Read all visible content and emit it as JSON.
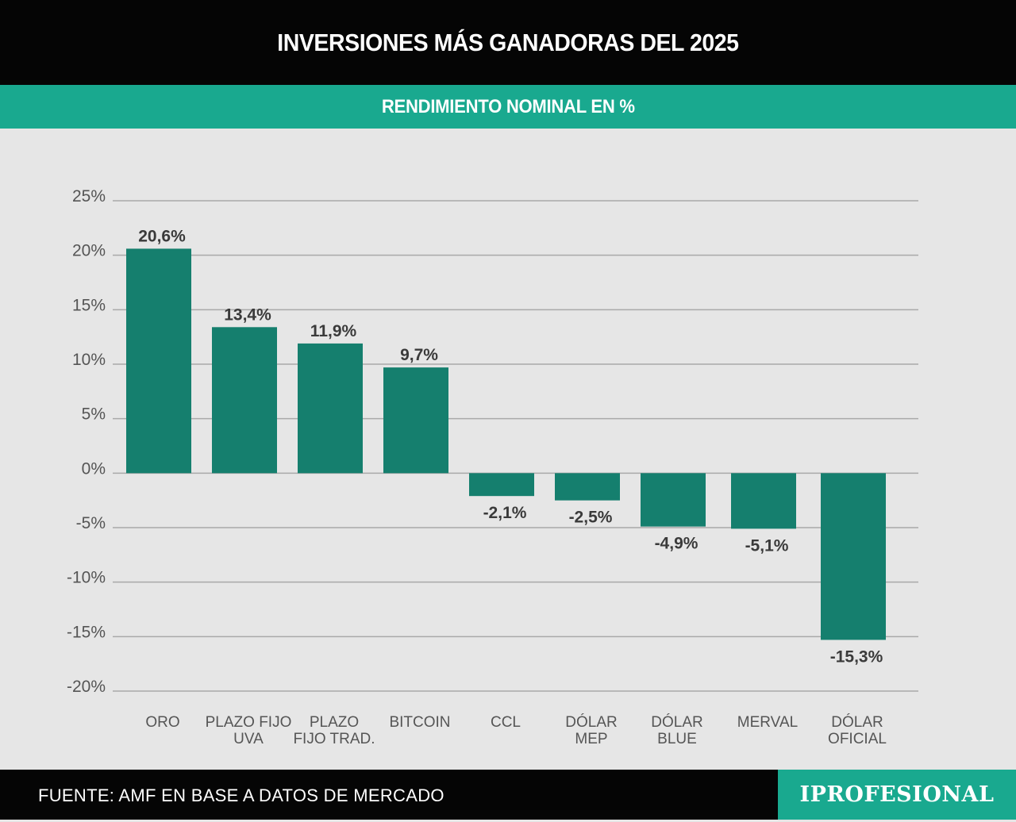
{
  "header": {
    "title": "INVERSIONES MÁS GANADORAS DEL 2025",
    "subtitle": "RENDIMIENTO NOMINAL EN %"
  },
  "footer": {
    "source": "FUENTE: AMF EN BASE A DATOS DE MERCADO",
    "brand": "IPROFESIONAL"
  },
  "colors": {
    "bar": "#157f6e",
    "accent": "#19a98f",
    "grid": "#a9a9a9",
    "background": "#e6e6e6"
  },
  "chart_data": {
    "type": "bar",
    "title": "INVERSIONES MÁS GANADORAS DEL 2025",
    "subtitle": "RENDIMIENTO NOMINAL EN %",
    "xlabel": "",
    "ylabel": "",
    "ylim": [
      -20,
      25
    ],
    "yticks": [
      25,
      20,
      15,
      10,
      5,
      0,
      -5,
      -10,
      -15,
      -20
    ],
    "ytick_labels": [
      "25%",
      "20%",
      "15%",
      "10%",
      "5%",
      "0%",
      "-5%",
      "-10%",
      "-15%",
      "-20%"
    ],
    "grid": true,
    "categories": [
      [
        "ORO"
      ],
      [
        "PLAZO  FIJO",
        "UVA"
      ],
      [
        "PLAZO",
        "FIJO  TRAD."
      ],
      [
        "BITCOIN"
      ],
      [
        "CCL"
      ],
      [
        "DÓLAR",
        "MEP"
      ],
      [
        "DÓLAR",
        "BLUE"
      ],
      [
        "MERVAL"
      ],
      [
        "DÓLAR",
        "OFICIAL"
      ]
    ],
    "values": [
      20.6,
      13.4,
      11.9,
      9.7,
      -2.1,
      -2.5,
      -4.9,
      -5.1,
      -15.3
    ],
    "value_labels": [
      "20,6%",
      "13,4%",
      "11,9%",
      "9,7%",
      "-2,1%",
      "-2,5%",
      "-4,9%",
      "-5,1%",
      "-15,3%"
    ]
  }
}
